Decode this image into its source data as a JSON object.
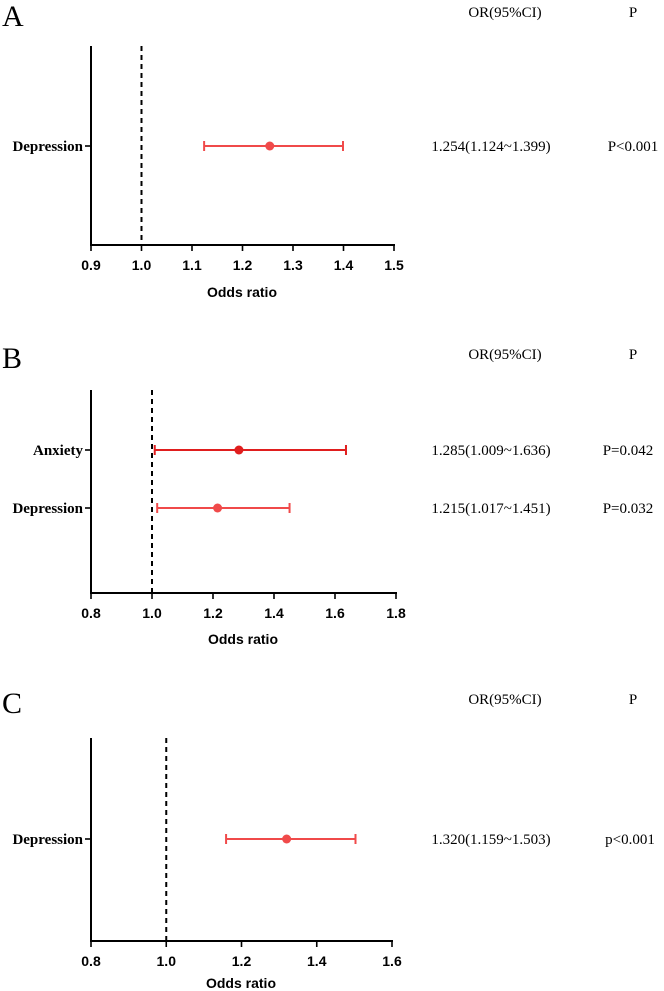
{
  "chart_data": [
    {
      "type": "forest",
      "panel": "A",
      "xlabel": "Odds ratio",
      "xlim": [
        0.9,
        1.5
      ],
      "ticks": [
        "0.9",
        "1.0",
        "1.1",
        "1.2",
        "1.3",
        "1.4",
        "1.5"
      ],
      "reference_line": 1.0,
      "column_headers": [
        "OR(95%CI)",
        "P"
      ],
      "rows": [
        {
          "label": "Depression",
          "or": 1.254,
          "lower": 1.124,
          "upper": 1.399,
          "ci_text": "1.254(1.124~1.399)",
          "p_text": "P<0.001"
        }
      ]
    },
    {
      "type": "forest",
      "panel": "B",
      "xlabel": "Odds ratio",
      "xlim": [
        0.8,
        1.8
      ],
      "ticks": [
        "0.8",
        "1.0",
        "1.2",
        "1.4",
        "1.6",
        "1.8"
      ],
      "reference_line": 1.0,
      "column_headers": [
        "OR(95%CI)",
        "P"
      ],
      "rows": [
        {
          "label": "Anxiety",
          "or": 1.285,
          "lower": 1.009,
          "upper": 1.636,
          "ci_text": "1.285(1.009~1.636)",
          "p_text": "P=0.042"
        },
        {
          "label": "Depression",
          "or": 1.215,
          "lower": 1.017,
          "upper": 1.451,
          "ci_text": "1.215(1.017~1.451)",
          "p_text": "P=0.032"
        }
      ]
    },
    {
      "type": "forest",
      "panel": "C",
      "xlabel": "Odds ratio",
      "xlim": [
        0.8,
        1.6
      ],
      "ticks": [
        "0.8",
        "1.0",
        "1.2",
        "1.4",
        "1.6"
      ],
      "reference_line": 1.0,
      "column_headers": [
        "OR(95%CI)",
        "P"
      ],
      "rows": [
        {
          "label": "Depression",
          "or": 1.32,
          "lower": 1.159,
          "upper": 1.503,
          "ci_text": "1.320(1.159~1.503)",
          "p_text": "p<0.001"
        }
      ]
    }
  ],
  "colors": {
    "marker": "#f04a4a",
    "marker_dark": "#e01e1e",
    "axis": "#000000"
  }
}
